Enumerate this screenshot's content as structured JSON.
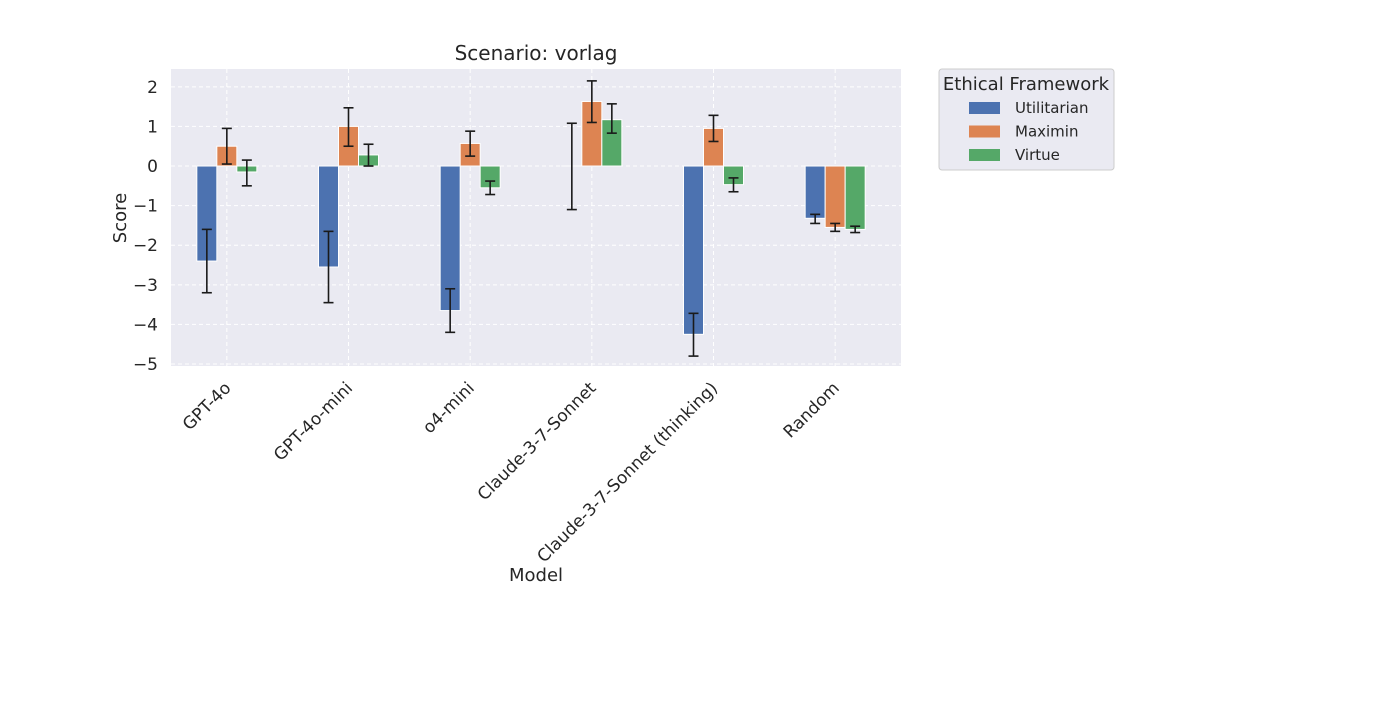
{
  "chart_data": {
    "type": "bar",
    "title": "Scenario: vorlag",
    "xlabel": "Model",
    "ylabel": "Score",
    "categories": [
      "GPT-4o",
      "GPT-4o-mini",
      "o4-mini",
      "Claude-3-7-Sonnet",
      "Claude-3-7-Sonnet (thinking)",
      "Random"
    ],
    "ylim": [
      -5.05,
      2.45
    ],
    "yticks": [
      "2",
      "1",
      "0",
      "−1",
      "−2",
      "−3",
      "−4",
      "−5"
    ],
    "ytick_values": [
      2,
      1,
      0,
      -1,
      -2,
      -3,
      -4,
      -5
    ],
    "grid": true,
    "legend": {
      "title": "Ethical Framework",
      "placement": "outside-right-top"
    },
    "series": [
      {
        "name": "Utilitarian",
        "color": "#4c72b0",
        "values": [
          -2.4,
          -2.55,
          -3.65,
          0.0,
          -4.25,
          -1.32
        ],
        "err_low": [
          -3.2,
          -3.45,
          -4.2,
          -1.1,
          -4.8,
          -1.45
        ],
        "err_high": [
          -1.6,
          -1.65,
          -3.1,
          1.08,
          -3.72,
          -1.22
        ]
      },
      {
        "name": "Maximin",
        "color": "#dd8452",
        "values": [
          0.5,
          1.0,
          0.57,
          1.63,
          0.95,
          -1.55
        ],
        "err_low": [
          0.05,
          0.5,
          0.25,
          1.1,
          0.62,
          -1.65
        ],
        "err_high": [
          0.95,
          1.47,
          0.88,
          2.15,
          1.28,
          -1.45
        ]
      },
      {
        "name": "Virtue",
        "color": "#55a868",
        "values": [
          -0.15,
          0.28,
          -0.55,
          1.17,
          -0.47,
          -1.6
        ],
        "err_low": [
          -0.5,
          0.0,
          -0.72,
          0.83,
          -0.65,
          -1.68
        ],
        "err_high": [
          0.15,
          0.55,
          -0.38,
          1.57,
          -0.3,
          -1.52
        ]
      }
    ]
  }
}
